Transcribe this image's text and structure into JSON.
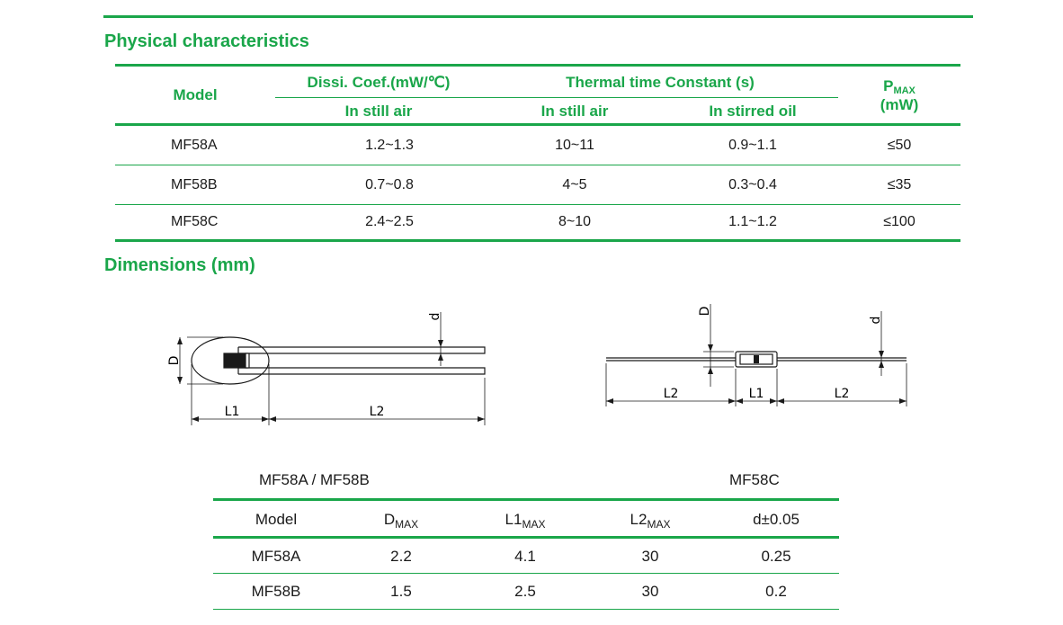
{
  "physical": {
    "title": "Physical characteristics",
    "header": {
      "model": "Model",
      "dissi": "Dissi. Coef.(mW/℃)",
      "thermal": "Thermal time Constant (s)",
      "still_air_1": "In still air",
      "still_air_2": "In still air",
      "stirred_oil": "In stirred oil",
      "pmax_main": "P",
      "pmax_sub": "MAX",
      "pmax_unit": "(mW)"
    },
    "rows": [
      {
        "model": "MF58A",
        "dissi": "1.2~1.3",
        "still": "10~11",
        "oil": "0.9~1.1",
        "pmax": "≤50"
      },
      {
        "model": "MF58B",
        "dissi": "0.7~0.8",
        "still": "4~5",
        "oil": "0.3~0.4",
        "pmax": "≤35"
      },
      {
        "model": "MF58C",
        "dissi": "2.4~2.5",
        "still": "8~10",
        "oil": "1.1~1.2",
        "pmax": "≤100"
      }
    ]
  },
  "dimensions": {
    "title": "Dimensions (mm)",
    "drawing_left": {
      "D": "D",
      "d": "d",
      "L1": "L1",
      "L2": "L2"
    },
    "drawing_right": {
      "D": "D",
      "d": "d",
      "L1": "L1",
      "L2a": "L2",
      "L2b": "L2"
    },
    "caption_left": "MF58A / MF58B",
    "caption_right": "MF58C",
    "table": {
      "header": {
        "model": "Model",
        "d_main": "D",
        "d_sub": "MAX",
        "l1_main": "L1",
        "l1_sub": "MAX",
        "l2_main": "L2",
        "l2_sub": "MAX",
        "tol": "d±0.05"
      },
      "rows": [
        {
          "model": "MF58A",
          "d": "2.2",
          "l1": "4.1",
          "l2": "30",
          "dd": "0.25"
        },
        {
          "model": "MF58B",
          "d": "1.5",
          "l1": "2.5",
          "l2": "30",
          "dd": "0.2"
        }
      ]
    }
  }
}
